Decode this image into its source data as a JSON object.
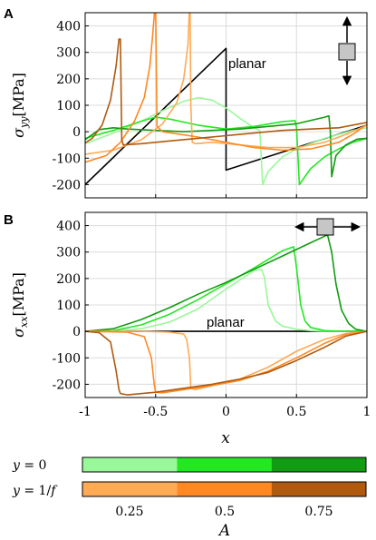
{
  "panels": [
    {
      "letter": "A",
      "ylabel_var": "σ",
      "ylabel_sub": "yy",
      "ylabel_unit": "[MPa]",
      "annotation": "planar",
      "icon": "vertical-arrow-square-icon"
    },
    {
      "letter": "B",
      "ylabel_var": "σ",
      "ylabel_sub": "xx",
      "ylabel_unit": "[MPa]",
      "annotation": "planar",
      "icon": "horizontal-arrow-square-icon"
    }
  ],
  "chart_data": [
    {
      "type": "line",
      "panel": "A",
      "xlim": [
        -1,
        1
      ],
      "ylim": [
        -250,
        450
      ],
      "yticks": [
        -200,
        -100,
        0,
        100,
        200,
        300,
        400
      ],
      "xticks": [
        -1,
        -0.5,
        0,
        0.5,
        1
      ],
      "grid": true,
      "series": [
        {
          "name": "planar",
          "color": "#000000",
          "x": [
            -1,
            0,
            0,
            1
          ],
          "y": [
            -200,
            315,
            -145,
            25
          ]
        },
        {
          "group": "y = 0",
          "A": 0.25,
          "color": "#99f899",
          "x": [
            -1,
            -0.8,
            -0.6,
            -0.45,
            -0.3,
            -0.2,
            -0.1,
            0,
            0.1,
            0.2,
            0.24,
            0.26,
            0.3,
            0.4,
            0.5,
            0.7,
            0.9,
            1
          ],
          "y": [
            -45,
            -5,
            40,
            80,
            115,
            128,
            120,
            90,
            50,
            15,
            5,
            -200,
            -150,
            -95,
            -65,
            -25,
            5,
            15
          ]
        },
        {
          "group": "y = 0",
          "A": 0.5,
          "color": "#22e822",
          "x": [
            -1,
            -0.8,
            -0.6,
            -0.5,
            -0.4,
            -0.2,
            0,
            0.2,
            0.4,
            0.49,
            0.5,
            0.52,
            0.6,
            0.7,
            0.8,
            0.9,
            1
          ],
          "y": [
            -25,
            5,
            40,
            55,
            48,
            25,
            10,
            20,
            38,
            42,
            15,
            -200,
            -140,
            -95,
            -65,
            -40,
            -25
          ]
        },
        {
          "group": "y = 0",
          "A": 0.75,
          "color": "#119c11",
          "x": [
            -1,
            -0.9,
            -0.8,
            -0.7,
            -0.5,
            -0.3,
            -0.1,
            0.1,
            0.3,
            0.5,
            0.7,
            0.73,
            0.74,
            0.75,
            0.78,
            0.85,
            0.93,
            1
          ],
          "y": [
            -30,
            8,
            15,
            10,
            5,
            0,
            5,
            10,
            20,
            30,
            55,
            60,
            0,
            -170,
            -90,
            -50,
            -28,
            -25
          ]
        },
        {
          "group": "y = 1/f",
          "A": 0.25,
          "color": "#ffaa55",
          "x": [
            -1,
            -0.8,
            -0.6,
            -0.45,
            -0.35,
            -0.3,
            -0.27,
            -0.26,
            -0.255,
            -0.25,
            -0.24,
            -0.22,
            -0.1,
            0.1,
            0.3,
            0.5,
            0.7,
            0.85,
            1
          ],
          "y": [
            -85,
            -70,
            -30,
            30,
            110,
            200,
            330,
            470,
            470,
            100,
            -40,
            -45,
            -40,
            -50,
            -60,
            -60,
            -40,
            -10,
            25
          ]
        },
        {
          "group": "y = 1/f",
          "A": 0.5,
          "color": "#ff8822",
          "x": [
            -1,
            -0.85,
            -0.75,
            -0.65,
            -0.58,
            -0.54,
            -0.52,
            -0.505,
            -0.5,
            -0.49,
            -0.45,
            -0.2,
            0,
            0.2,
            0.4,
            0.6,
            0.8,
            0.9,
            1
          ],
          "y": [
            -115,
            -90,
            -40,
            40,
            130,
            250,
            370,
            470,
            470,
            20,
            0,
            -20,
            -40,
            -60,
            -70,
            -65,
            -40,
            -10,
            28
          ]
        },
        {
          "group": "y = 1/f",
          "A": 0.75,
          "color": "#b05a10",
          "x": [
            -1,
            -0.95,
            -0.88,
            -0.82,
            -0.78,
            -0.76,
            -0.75,
            -0.74,
            -0.73,
            -0.6,
            -0.4,
            -0.2,
            0,
            0.2,
            0.4,
            0.6,
            0.8,
            1
          ],
          "y": [
            -42,
            -25,
            25,
            120,
            250,
            350,
            350,
            -30,
            -50,
            -45,
            -35,
            -25,
            -15,
            -5,
            5,
            10,
            15,
            35
          ]
        }
      ]
    },
    {
      "type": "line",
      "panel": "B",
      "xlim": [
        -1,
        1
      ],
      "ylim": [
        -250,
        450
      ],
      "yticks": [
        -200,
        -100,
        0,
        100,
        200,
        300,
        400
      ],
      "xticks": [
        -1,
        -0.5,
        0,
        0.5,
        1
      ],
      "xticklabels": [
        "-1",
        "-0.5",
        "0",
        "0.5",
        "1"
      ],
      "xlabel": "x",
      "grid": true,
      "series": [
        {
          "name": "planar",
          "color": "#000000",
          "x": [
            -1,
            1
          ],
          "y": [
            0,
            0
          ]
        },
        {
          "group": "y = 0",
          "A": 0.25,
          "color": "#99f899",
          "x": [
            -1,
            -0.8,
            -0.6,
            -0.4,
            -0.2,
            0,
            0.2,
            0.25,
            0.27,
            0.3,
            0.35,
            0.4,
            0.5,
            0.6,
            0.7,
            0.8,
            1
          ],
          "y": [
            0,
            2,
            10,
            35,
            85,
            160,
            230,
            235,
            210,
            100,
            40,
            20,
            8,
            3,
            1,
            0,
            0
          ]
        },
        {
          "group": "y = 0",
          "A": 0.5,
          "color": "#22e822",
          "x": [
            -1,
            -0.8,
            -0.6,
            -0.4,
            -0.2,
            0,
            0.2,
            0.4,
            0.48,
            0.5,
            0.53,
            0.56,
            0.6,
            0.7,
            0.8,
            1
          ],
          "y": [
            0,
            3,
            25,
            65,
            120,
            180,
            240,
            305,
            320,
            240,
            100,
            40,
            15,
            3,
            1,
            0
          ]
        },
        {
          "group": "y = 0",
          "A": 0.75,
          "color": "#119c11",
          "x": [
            -1,
            -0.8,
            -0.6,
            -0.4,
            -0.2,
            0,
            0.2,
            0.4,
            0.6,
            0.72,
            0.75,
            0.78,
            0.82,
            0.87,
            0.92,
            1
          ],
          "y": [
            0,
            10,
            45,
            90,
            140,
            185,
            235,
            285,
            335,
            365,
            300,
            180,
            80,
            30,
            8,
            0
          ]
        },
        {
          "group": "y = 1/f",
          "A": 0.25,
          "color": "#ffaa55",
          "x": [
            -1,
            -0.6,
            -0.4,
            -0.3,
            -0.28,
            -0.26,
            -0.25,
            -0.22,
            -0.1,
            0.1,
            0.3,
            0.5,
            0.7,
            0.85,
            1
          ],
          "y": [
            0,
            0,
            -3,
            -10,
            -30,
            -100,
            -215,
            -220,
            -205,
            -180,
            -135,
            -75,
            -30,
            -8,
            0
          ]
        },
        {
          "group": "y = 1/f",
          "A": 0.5,
          "color": "#ff8822",
          "x": [
            -1,
            -0.7,
            -0.58,
            -0.53,
            -0.51,
            -0.5,
            -0.45,
            -0.3,
            -0.1,
            0.1,
            0.3,
            0.5,
            0.7,
            0.85,
            1
          ],
          "y": [
            0,
            -3,
            -20,
            -100,
            -200,
            -230,
            -232,
            -220,
            -205,
            -185,
            -150,
            -100,
            -45,
            -12,
            0
          ]
        },
        {
          "group": "y = 1/f",
          "A": 0.75,
          "color": "#b05a10",
          "x": [
            -1,
            -0.9,
            -0.82,
            -0.78,
            -0.76,
            -0.75,
            -0.7,
            -0.5,
            -0.3,
            -0.1,
            0.1,
            0.3,
            0.5,
            0.7,
            0.85,
            1
          ],
          "y": [
            0,
            -5,
            -40,
            -150,
            -220,
            -235,
            -240,
            -230,
            -215,
            -200,
            -180,
            -155,
            -110,
            -60,
            -18,
            0
          ]
        }
      ]
    }
  ],
  "legend": {
    "rows": [
      {
        "label_var": "y",
        "label_eq": " = 0",
        "colors": [
          "#99f899",
          "#22e822",
          "#119c11"
        ]
      },
      {
        "label_var": "y",
        "label_eq": " = 1/",
        "label_tail": "f",
        "colors": [
          "#ffaa55",
          "#ff8822",
          "#b05a10"
        ]
      }
    ],
    "ticks": [
      "0.25",
      "0.5",
      "0.75"
    ],
    "axis_label": "A"
  }
}
